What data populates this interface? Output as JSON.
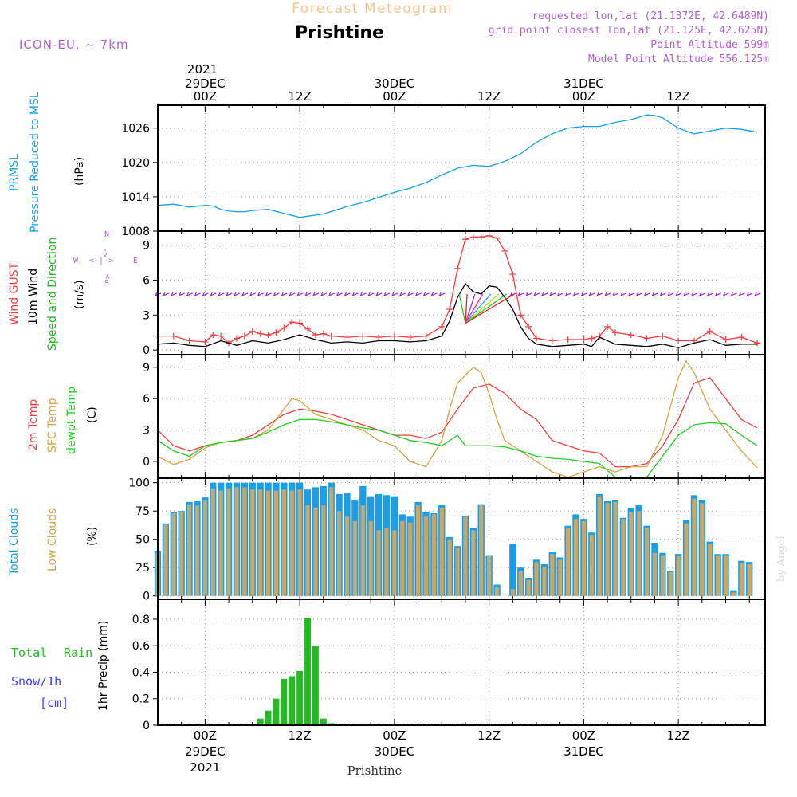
{
  "header": {
    "title": "Forecast Meteogram",
    "location": "Prishtine",
    "model": "ICON-EU, ~ 7km",
    "requested": "requested lon,lat (21.1372E, 42.6489N)",
    "grid_point": "grid point closest lon,lat (21.125E, 42.625N)",
    "point_altitude": "Point Altitude 599m",
    "model_altitude": "Model Point Altitude 556.125m",
    "credit": "by Angel",
    "footer": "Prishtine"
  },
  "time_axis": {
    "top_year": "2021",
    "top_labels": [
      {
        "t": 0,
        "lines": [
          "29DEC",
          "00Z"
        ]
      },
      {
        "t": 12,
        "lines": [
          "12Z"
        ]
      },
      {
        "t": 24,
        "lines": [
          "30DEC",
          "00Z"
        ]
      },
      {
        "t": 36,
        "lines": [
          "12Z"
        ]
      },
      {
        "t": 48,
        "lines": [
          "31DEC",
          "00Z"
        ]
      },
      {
        "t": 60,
        "lines": [
          "12Z"
        ]
      }
    ],
    "bottom_labels": [
      {
        "t": 0,
        "lines": [
          "00Z",
          "29DEC",
          "2021"
        ]
      },
      {
        "t": 12,
        "lines": [
          "12Z"
        ]
      },
      {
        "t": 24,
        "lines": [
          "00Z",
          "30DEC"
        ]
      },
      {
        "t": 36,
        "lines": [
          "12Z"
        ]
      },
      {
        "t": 48,
        "lines": [
          "00Z",
          "31DEC"
        ]
      },
      {
        "t": 60,
        "lines": [
          "12Z"
        ]
      }
    ],
    "range": [
      -6,
      71
    ]
  },
  "colors": {
    "pressure": "#1a9ee8",
    "gust": "#f04040",
    "wind": "#000000",
    "wind_arrow": "#9a2ad6",
    "t2m": "#f04040",
    "sfc": "#d6a441",
    "dewpt": "#22cc22",
    "total_cloud": "#1a9ee8",
    "low_cloud": "#c9a867",
    "rain": "#22bb22",
    "snow": "#4040ff",
    "purple": "#b060d0",
    "title": "#f1c98a"
  },
  "labels": {
    "pressure": {
      "l1": "PRMSL",
      "l2": "Pressure Reduced to MSL",
      "unit": "(hPa)"
    },
    "wind": {
      "l1": "Wind GUST",
      "l2": "10m Wind",
      "l3": "Speed and Direction",
      "unit": "(m/s)",
      "compass_w": "W",
      "compass_e": "E",
      "compass_n": "N",
      "compass_s": "S"
    },
    "temp": {
      "l1": "2m Temp",
      "l2": "SFC Temp",
      "l3": "dewpt Temp",
      "unit": "(C)"
    },
    "cloud": {
      "l1": "Total Clouds",
      "l2": "Low Clouds",
      "unit": "(%)"
    },
    "precip": {
      "l1": "Total",
      "l1b": "Rain",
      "l2": "Snow/1h",
      "l3": "[cm]",
      "unit": "1hr Precip (mm)"
    }
  },
  "chart_data": [
    {
      "type": "line",
      "name": "pressure",
      "ylim": [
        1008,
        1030
      ],
      "yticks": [
        1008,
        1014,
        1020,
        1026
      ],
      "series": [
        {
          "name": "PRMSL",
          "x": [
            -6,
            -4,
            -2,
            0,
            1,
            2,
            3,
            4,
            5,
            6,
            8,
            10,
            12,
            13,
            15,
            18,
            20,
            24,
            26,
            28,
            30,
            32,
            34,
            36,
            38,
            40,
            42,
            44,
            46,
            48,
            50,
            52,
            54,
            56,
            57,
            58,
            60,
            62,
            64,
            66,
            68,
            70
          ],
          "values": [
            1012.5,
            1012.7,
            1012.2,
            1012.5,
            1012.4,
            1011.8,
            1011.5,
            1011.4,
            1011.4,
            1011.6,
            1011.8,
            1011.1,
            1010.4,
            1010.6,
            1011.0,
            1012.3,
            1013.0,
            1014.8,
            1015.5,
            1016.5,
            1017.8,
            1019.0,
            1019.5,
            1019.3,
            1020.2,
            1021.5,
            1023.5,
            1025.0,
            1026.0,
            1026.3,
            1026.3,
            1027.0,
            1027.5,
            1028.3,
            1028.2,
            1027.8,
            1026.0,
            1025.0,
            1025.5,
            1026.0,
            1025.8,
            1025.3
          ]
        }
      ]
    },
    {
      "type": "line",
      "name": "wind",
      "ylim": [
        -0.4,
        10.2
      ],
      "yticks": [
        0,
        3,
        6,
        9
      ],
      "series": [
        {
          "name": "Wind GUST",
          "x": [
            -6,
            -4,
            -2,
            0,
            1,
            2,
            3,
            4,
            5,
            6,
            7,
            8,
            9,
            10,
            11,
            12,
            13,
            14,
            15,
            16,
            18,
            20,
            22,
            24,
            26,
            28,
            30,
            31,
            32,
            33,
            34,
            35,
            36,
            37,
            38,
            39,
            40,
            41,
            42,
            44,
            46,
            48,
            49,
            50,
            51,
            52,
            54,
            56,
            58,
            60,
            62,
            64,
            66,
            68,
            70
          ],
          "values": [
            1.2,
            1.2,
            0.8,
            0.7,
            1.3,
            1.2,
            0.6,
            1.0,
            1.2,
            1.6,
            1.4,
            1.3,
            1.5,
            1.9,
            2.4,
            2.3,
            1.8,
            1.3,
            1.4,
            1.2,
            1.1,
            1.2,
            1.1,
            1.2,
            1.1,
            1.2,
            2.0,
            3.5,
            7.0,
            9.5,
            9.7,
            9.7,
            9.8,
            9.6,
            8.5,
            6.5,
            3.0,
            2.0,
            1.0,
            0.8,
            0.9,
            0.9,
            1.0,
            1.2,
            2.0,
            1.5,
            1.3,
            1.0,
            1.2,
            0.8,
            0.8,
            1.6,
            0.9,
            1.1,
            0.6
          ]
        },
        {
          "name": "10m Wind",
          "x": [
            -6,
            -4,
            -2,
            0,
            2,
            4,
            6,
            8,
            10,
            12,
            14,
            16,
            18,
            20,
            22,
            24,
            26,
            28,
            30,
            31,
            32,
            33,
            34,
            35,
            36,
            37,
            38,
            39,
            40,
            41,
            42,
            44,
            46,
            48,
            49,
            50,
            52,
            54,
            56,
            58,
            60,
            62,
            64,
            66,
            68,
            70
          ],
          "values": [
            0.5,
            0.6,
            0.4,
            0.3,
            0.8,
            0.4,
            0.8,
            0.6,
            0.9,
            1.3,
            0.9,
            0.6,
            0.7,
            0.6,
            0.8,
            0.8,
            0.7,
            0.8,
            1.2,
            2.5,
            4.5,
            5.7,
            5.0,
            4.8,
            5.5,
            5.4,
            4.5,
            3.5,
            2.0,
            1.0,
            0.5,
            0.3,
            0.4,
            0.5,
            0.3,
            1.1,
            0.5,
            0.4,
            0.3,
            0.5,
            0.2,
            0.6,
            0.9,
            0.4,
            0.5,
            0.5
          ]
        }
      ]
    },
    {
      "type": "line",
      "name": "temperature",
      "ylim": [
        -1.6,
        10.2
      ],
      "yticks": [
        0,
        3,
        6,
        9
      ],
      "series": [
        {
          "name": "2m Temp",
          "x": [
            -6,
            -4,
            -2,
            0,
            2,
            4,
            6,
            8,
            10,
            12,
            14,
            16,
            18,
            20,
            22,
            24,
            26,
            28,
            30,
            32,
            34,
            36,
            38,
            40,
            42,
            44,
            46,
            48,
            50,
            52,
            54,
            56,
            58,
            60,
            62,
            64,
            66,
            68,
            70
          ],
          "values": [
            3.0,
            1.5,
            1.0,
            1.5,
            1.8,
            2.0,
            2.5,
            3.5,
            4.5,
            5.0,
            4.8,
            4.5,
            4.0,
            3.5,
            3.0,
            2.5,
            2.5,
            2.2,
            2.8,
            5.0,
            7.0,
            7.4,
            6.5,
            5.0,
            4.0,
            2.0,
            1.5,
            1.0,
            0.8,
            -0.5,
            -0.5,
            -0.2,
            1.5,
            4.0,
            7.5,
            8.0,
            6.0,
            4.0,
            3.2
          ]
        },
        {
          "name": "SFC Temp",
          "x": [
            -6,
            -4,
            -2,
            0,
            2,
            4,
            6,
            8,
            10,
            11,
            12,
            14,
            16,
            18,
            20,
            22,
            24,
            26,
            28,
            30,
            31,
            32,
            34,
            35,
            36,
            37,
            38,
            40,
            42,
            44,
            46,
            48,
            50,
            52,
            54,
            56,
            58,
            60,
            61,
            62,
            64,
            66,
            68,
            70
          ],
          "values": [
            0.5,
            -0.3,
            0.2,
            1.3,
            1.8,
            2.0,
            2.2,
            3.0,
            5.0,
            6.0,
            5.8,
            4.5,
            4.0,
            3.5,
            3.0,
            2.0,
            1.5,
            0.0,
            -0.5,
            2.0,
            5.0,
            7.5,
            9.0,
            8.5,
            6.5,
            4.0,
            2.0,
            1.0,
            0.0,
            -1.0,
            -1.5,
            -1.0,
            -0.5,
            -1.0,
            -0.5,
            -0.5,
            2.5,
            8.0,
            9.6,
            8.5,
            5.0,
            3.0,
            1.0,
            -0.6
          ]
        },
        {
          "name": "dewpt Temp",
          "x": [
            -6,
            -4,
            -2,
            0,
            2,
            4,
            6,
            8,
            10,
            12,
            14,
            16,
            18,
            20,
            22,
            24,
            26,
            28,
            30,
            32,
            33,
            34,
            36,
            38,
            40,
            42,
            44,
            46,
            48,
            50,
            52,
            54,
            56,
            58,
            60,
            62,
            64,
            66,
            68,
            70
          ],
          "values": [
            2.0,
            1.0,
            0.5,
            1.5,
            1.8,
            2.0,
            2.2,
            2.8,
            3.5,
            4.0,
            4.0,
            3.8,
            3.5,
            3.2,
            3.0,
            2.5,
            2.0,
            1.8,
            1.5,
            2.5,
            1.5,
            1.5,
            1.5,
            1.4,
            1.0,
            0.5,
            0.3,
            0.2,
            0.0,
            -0.2,
            -1.5,
            -1.8,
            -1.5,
            0.5,
            2.5,
            3.5,
            3.7,
            3.6,
            2.5,
            1.5
          ]
        }
      ]
    },
    {
      "type": "bar",
      "name": "clouds",
      "ylim": [
        -3,
        104
      ],
      "yticks": [
        0,
        25,
        50,
        75,
        100
      ],
      "x_start": -6,
      "series": [
        {
          "name": "Total Clouds",
          "values": [
            40,
            64,
            74,
            75,
            83,
            84,
            87,
            100,
            100,
            100,
            100,
            100,
            100,
            100,
            100,
            100,
            100,
            100,
            100,
            94,
            96,
            97,
            100,
            90,
            91,
            85,
            97,
            88,
            90,
            89,
            88,
            72,
            70,
            83,
            74,
            73,
            80,
            52,
            44,
            71,
            60,
            81,
            36,
            10,
            0,
            46,
            25,
            16,
            32,
            28,
            39,
            34,
            62,
            72,
            68,
            56,
            90,
            84,
            85,
            69,
            78,
            80,
            62,
            47,
            38,
            22,
            37,
            67,
            89,
            85,
            48,
            37,
            37,
            5,
            31,
            30
          ]
        },
        {
          "name": "Low Clouds",
          "values": [
            38,
            63,
            73,
            74,
            81,
            80,
            85,
            95,
            93,
            95,
            96,
            96,
            94,
            94,
            93,
            93,
            94,
            93,
            94,
            80,
            78,
            80,
            96,
            75,
            70,
            66,
            80,
            66,
            58,
            60,
            58,
            66,
            65,
            80,
            70,
            72,
            78,
            50,
            42,
            70,
            58,
            80,
            35,
            8,
            0,
            6,
            22,
            14,
            30,
            26,
            37,
            32,
            60,
            68,
            66,
            54,
            88,
            82,
            83,
            68,
            74,
            75,
            60,
            38,
            36,
            21,
            35,
            64,
            86,
            82,
            46,
            36,
            36,
            3,
            29,
            28
          ]
        }
      ]
    },
    {
      "type": "bar",
      "name": "precipitation",
      "ylim": [
        0,
        0.95
      ],
      "yticks": [
        0,
        0.2,
        0.4,
        0.6,
        0.8
      ],
      "series": [
        {
          "name": "Total Rain",
          "x": [
            6,
            7,
            8,
            9,
            10,
            11,
            12,
            13,
            14,
            15,
            16,
            20,
            24
          ],
          "values": [
            0.01,
            0.05,
            0.11,
            0.2,
            0.35,
            0.37,
            0.41,
            0.81,
            0.6,
            0.05,
            0.015,
            0.01,
            0.01
          ]
        }
      ]
    }
  ]
}
